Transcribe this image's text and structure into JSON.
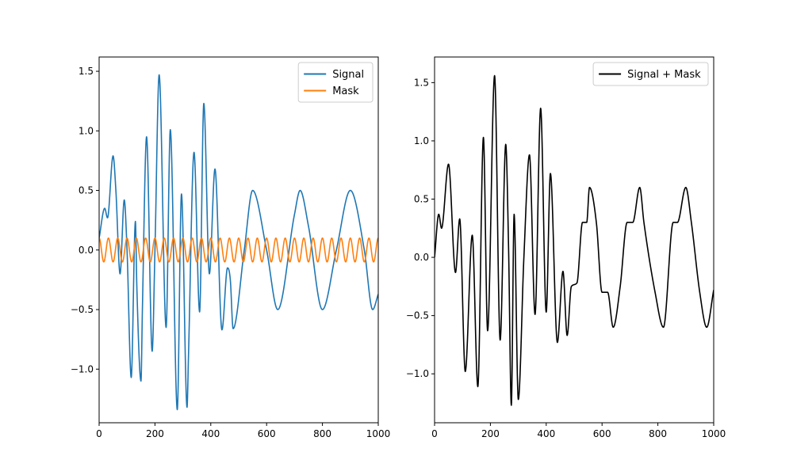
{
  "chart_data": [
    {
      "type": "line",
      "title": "",
      "xlabel": "",
      "ylabel": "",
      "xlim": [
        0,
        1000
      ],
      "ylim": [
        -1.45,
        1.62
      ],
      "xticks": [
        0,
        200,
        400,
        600,
        800,
        1000
      ],
      "xtick_labels": [
        "0",
        "200",
        "400",
        "600",
        "800",
        "1000"
      ],
      "yticks": [
        -1.0,
        -0.5,
        0.0,
        0.5,
        1.0,
        1.5
      ],
      "ytick_labels": [
        "−1.0",
        "−0.5",
        "0.0",
        "0.5",
        "1.0",
        "1.5"
      ],
      "grid": false,
      "legend": "top-right",
      "series": [
        {
          "name": "Signal",
          "color": "#1f77b4",
          "x": [
            0,
            20,
            30,
            50,
            60,
            75,
            90,
            100,
            115,
            130,
            135,
            150,
            155,
            170,
            190,
            200,
            215,
            240,
            255,
            280,
            295,
            315,
            320,
            340,
            360,
            375,
            395,
            415,
            440,
            460,
            470,
            480,
            520,
            550,
            600,
            640,
            700,
            720,
            750,
            800,
            850,
            900,
            950,
            980,
            1000
          ],
          "y": [
            0.1,
            0.35,
            0.27,
            0.79,
            0.5,
            -0.2,
            0.42,
            0.0,
            -1.07,
            0.24,
            -0.3,
            -1.1,
            -0.5,
            0.95,
            -0.85,
            0.0,
            1.47,
            -0.65,
            1.01,
            -1.34,
            0.47,
            -1.32,
            -0.9,
            0.82,
            -0.52,
            1.23,
            -0.2,
            0.68,
            -0.67,
            -0.15,
            -0.25,
            -0.66,
            0.0,
            0.5,
            0.0,
            -0.5,
            0.3,
            0.5,
            0.2,
            -0.5,
            0.0,
            0.5,
            0.0,
            -0.5,
            -0.37
          ]
        },
        {
          "name": "Mask",
          "color": "#ff7f0e",
          "x": [
            0,
            1000
          ],
          "y": [
            0.1,
            0.1
          ],
          "amplitude": 0.1,
          "cycles": 30
        }
      ]
    },
    {
      "type": "line",
      "title": "",
      "xlabel": "",
      "ylabel": "",
      "xlim": [
        0,
        1000
      ],
      "ylim": [
        -1.42,
        1.72
      ],
      "xticks": [
        0,
        200,
        400,
        600,
        800,
        1000
      ],
      "xtick_labels": [
        "0",
        "200",
        "400",
        "600",
        "800",
        "1000"
      ],
      "yticks": [
        -1.0,
        -0.5,
        0.0,
        0.5,
        1.0,
        1.5
      ],
      "ytick_labels": [
        "−1.0",
        "−0.5",
        "0.0",
        "0.5",
        "1.0",
        "1.5"
      ],
      "grid": false,
      "legend": "top-right",
      "series": [
        {
          "name": "Signal + Mask",
          "color": "#000000",
          "x": [
            0,
            15,
            25,
            50,
            75,
            90,
            110,
            135,
            155,
            175,
            190,
            215,
            235,
            255,
            265,
            275,
            285,
            300,
            320,
            340,
            360,
            380,
            400,
            415,
            440,
            460,
            475,
            490,
            510,
            530,
            545,
            555,
            580,
            600,
            620,
            640,
            665,
            690,
            710,
            735,
            750,
            790,
            820,
            855,
            870,
            900,
            920,
            950,
            975,
            1000
          ],
          "y": [
            0.0,
            0.37,
            0.25,
            0.8,
            -0.13,
            0.33,
            -0.98,
            0.19,
            -1.11,
            1.03,
            -0.63,
            1.56,
            -0.71,
            0.97,
            0.1,
            -1.27,
            0.37,
            -1.22,
            0.0,
            0.88,
            -0.49,
            1.28,
            -0.47,
            0.72,
            -0.73,
            -0.12,
            -0.67,
            -0.25,
            -0.22,
            0.3,
            0.3,
            0.6,
            0.29,
            -0.3,
            -0.3,
            -0.6,
            -0.25,
            0.3,
            0.3,
            0.6,
            0.3,
            -0.3,
            -0.6,
            0.3,
            0.3,
            0.6,
            0.3,
            -0.3,
            -0.6,
            -0.28
          ]
        }
      ]
    }
  ]
}
